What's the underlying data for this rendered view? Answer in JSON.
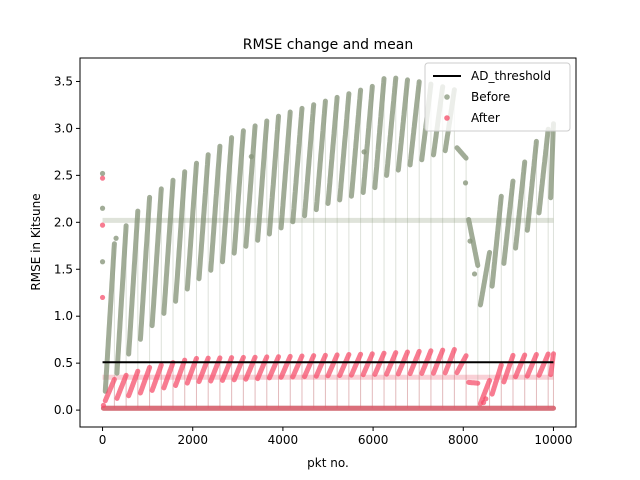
{
  "chart_data": {
    "type": "scatter",
    "title": "RMSE change and mean",
    "xlabel": "pkt no.",
    "ylabel": "RMSE in Kitsune",
    "xlim": [
      -500,
      10500
    ],
    "ylim": [
      -0.18,
      3.75
    ],
    "xticks": [
      0,
      2000,
      4000,
      6000,
      8000,
      10000
    ],
    "xtick_labels": [
      "0",
      "2000",
      "4000",
      "6000",
      "8000",
      "10000"
    ],
    "yticks": [
      0.0,
      0.5,
      1.0,
      1.5,
      2.0,
      2.5,
      3.0,
      3.5
    ],
    "ytick_labels": [
      "0.0",
      "0.5",
      "1.0",
      "1.5",
      "2.0",
      "2.5",
      "3.0",
      "3.5"
    ],
    "legend_position": "top-right",
    "colors": {
      "threshold": "#000000",
      "before": "#86957a",
      "after": "#f54a66",
      "before_mean": "#dfe3da",
      "after_mean": "#f9d0d6"
    },
    "series": [
      {
        "name": "AD_threshold",
        "kind": "line",
        "x": [
          0,
          10000
        ],
        "y": [
          0.51,
          0.51
        ]
      },
      {
        "name": "Before",
        "kind": "scatter",
        "mean": 2.02,
        "sawtooth": {
          "period": 260,
          "start_x": 60,
          "end_x": 10000,
          "floor": 0.02,
          "peak_envelope": {
            "x": [
              100,
              500,
              1000,
              2000,
              3000,
              4000,
              5000,
              6000,
              6300,
              7000,
              7500,
              7900,
              8400,
              8800,
              9200,
              9600,
              10000
            ],
            "y_top": [
              1.65,
              1.95,
              2.25,
              2.6,
              2.95,
              3.15,
              3.3,
              3.45,
              3.55,
              3.5,
              3.45,
              3.4,
              1.2,
              2.25,
              2.5,
              2.85,
              3.05
            ],
            "y_bottom": [
              0.2,
              0.55,
              0.85,
              1.35,
              1.7,
              1.95,
              2.2,
              2.35,
              2.5,
              2.65,
              2.75,
              2.8,
              1.05,
              1.5,
              1.75,
              2.05,
              2.3
            ]
          }
        },
        "outliers": [
          {
            "x": 0,
            "y": 2.52
          },
          {
            "x": 0,
            "y": 2.15
          },
          {
            "x": 0,
            "y": 1.58
          },
          {
            "x": 300,
            "y": 1.83
          },
          {
            "x": 3300,
            "y": 2.7
          },
          {
            "x": 5800,
            "y": 2.75
          },
          {
            "x": 8050,
            "y": 2.42
          },
          {
            "x": 8150,
            "y": 1.8
          },
          {
            "x": 8250,
            "y": 1.45
          }
        ]
      },
      {
        "name": "After",
        "kind": "scatter",
        "mean": 0.35,
        "sawtooth": {
          "period": 260,
          "start_x": 60,
          "end_x": 10000,
          "floor": 0.02,
          "peak_envelope": {
            "x": [
              100,
              1000,
              2000,
              4000,
              6000,
              8000,
              8400,
              9000,
              10000
            ],
            "y_top": [
              0.3,
              0.45,
              0.55,
              0.57,
              0.6,
              0.65,
              0.2,
              0.58,
              0.6
            ],
            "y_bottom": [
              0.1,
              0.2,
              0.3,
              0.35,
              0.38,
              0.4,
              0.05,
              0.35,
              0.38
            ]
          }
        },
        "outliers": [
          {
            "x": 0,
            "y": 2.47
          },
          {
            "x": 0,
            "y": 1.97
          },
          {
            "x": 0,
            "y": 1.2
          },
          {
            "x": 20,
            "y": 0.05
          },
          {
            "x": 8450,
            "y": 0.08
          },
          {
            "x": 8500,
            "y": 0.12
          }
        ]
      }
    ]
  }
}
